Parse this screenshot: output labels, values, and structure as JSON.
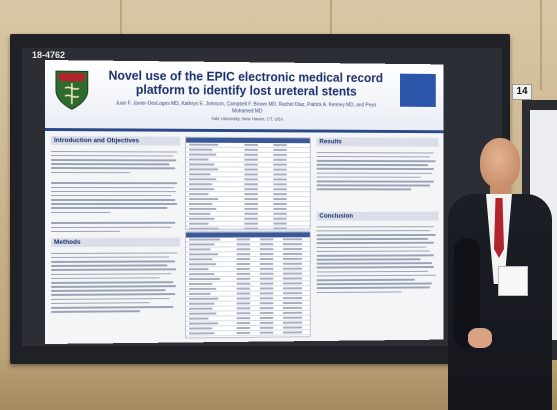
{
  "poster": {
    "id": "18-4762",
    "title": "Novel use of the EPIC electronic medical record platform to identify lost ureteral stents",
    "authors": "Juan F. Javier-DesLoges MD, Kathryn E. Johnson, Campbell F. Brown MD, Rachel Diaz, Patrick A. Kenney MD, and Peyo Mohamed MD",
    "affiliation": "Yale University, New Haven, CT, USA",
    "sections": {
      "intro": "Introduction and Objectives",
      "methods": "Methods",
      "results": "Results",
      "conclusion": "Conclusion"
    }
  },
  "easel_number": "14",
  "colors": {
    "title_blue": "#1c2f6b",
    "header_rule": "#2a4a8a",
    "tie_red": "#b3232c",
    "wall": "#cdb891"
  }
}
